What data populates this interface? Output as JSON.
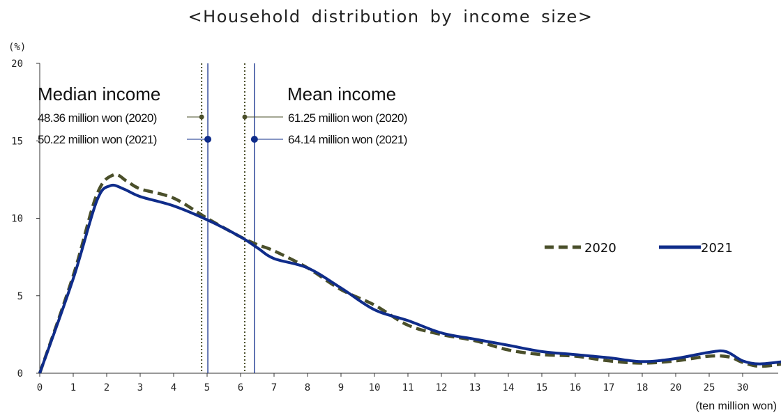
{
  "chart_data": {
    "type": "line",
    "title": "<Household distribution by income size>",
    "ylabel": "(%)",
    "xlabel": "(ten million won)",
    "ylim": [
      0,
      20
    ],
    "yticks": [
      "0",
      "5",
      "10",
      "15",
      "20"
    ],
    "categories": [
      "0",
      "1",
      "2",
      "3",
      "4",
      "5",
      "6",
      "7",
      "8",
      "9",
      "10",
      "11",
      "12",
      "13",
      "14",
      "15",
      "16",
      "17",
      "18",
      "20",
      "25",
      "30"
    ],
    "series": [
      {
        "name": "2020",
        "color": "#4a4f2a",
        "dash": true,
        "points": [
          [
            0,
            0
          ],
          [
            1,
            6.3
          ],
          [
            1.7,
            11.5
          ],
          [
            2.2,
            12.8
          ],
          [
            2.6,
            12.4
          ],
          [
            3,
            11.9
          ],
          [
            4,
            11.3
          ],
          [
            5,
            10.0
          ],
          [
            6,
            8.8
          ],
          [
            6.5,
            8.3
          ],
          [
            7,
            7.9
          ],
          [
            8,
            6.8
          ],
          [
            9,
            5.4
          ],
          [
            10,
            4.4
          ],
          [
            11,
            3.1
          ],
          [
            12,
            2.5
          ],
          [
            13,
            2.1
          ],
          [
            14,
            1.5
          ],
          [
            15,
            1.2
          ],
          [
            16,
            1.1
          ],
          [
            17,
            0.8
          ],
          [
            18,
            0.65
          ],
          [
            19,
            0.8
          ],
          [
            20,
            1.1
          ],
          [
            20.6,
            1.05
          ],
          [
            21,
            0.7
          ],
          [
            21.5,
            0.45
          ],
          [
            22.2,
            0.6
          ]
        ]
      },
      {
        "name": "2021",
        "color": "#0f2c8a",
        "dash": false,
        "points": [
          [
            0,
            0
          ],
          [
            1,
            6.1
          ],
          [
            1.7,
            11.1
          ],
          [
            2.1,
            12.1
          ],
          [
            2.5,
            11.9
          ],
          [
            3,
            11.4
          ],
          [
            4,
            10.8
          ],
          [
            5,
            9.9
          ],
          [
            6,
            8.8
          ],
          [
            6.5,
            8.1
          ],
          [
            7,
            7.4
          ],
          [
            8,
            6.8
          ],
          [
            9,
            5.5
          ],
          [
            10,
            4.1
          ],
          [
            11,
            3.4
          ],
          [
            12,
            2.6
          ],
          [
            13,
            2.2
          ],
          [
            14,
            1.8
          ],
          [
            15,
            1.4
          ],
          [
            16,
            1.2
          ],
          [
            17,
            1.0
          ],
          [
            18,
            0.75
          ],
          [
            19,
            0.95
          ],
          [
            20,
            1.35
          ],
          [
            20.5,
            1.4
          ],
          [
            21,
            0.8
          ],
          [
            21.5,
            0.6
          ],
          [
            22.2,
            0.75
          ]
        ]
      }
    ],
    "legend_position": "right",
    "annotations": {
      "median": {
        "heading": "Median income",
        "v2020": 4.836,
        "v2021": 5.022,
        "label2020": "48.36 million won (2020)",
        "label2021": "50.22 million won (2021)"
      },
      "mean": {
        "heading": "Mean income",
        "v2020": 6.125,
        "v2021": 6.414,
        "label2020": "61.25 million won (2020)",
        "label2021": "64.14 million won (2021)"
      }
    }
  },
  "legend": {
    "label2020": "2020",
    "label2021": "2021"
  }
}
